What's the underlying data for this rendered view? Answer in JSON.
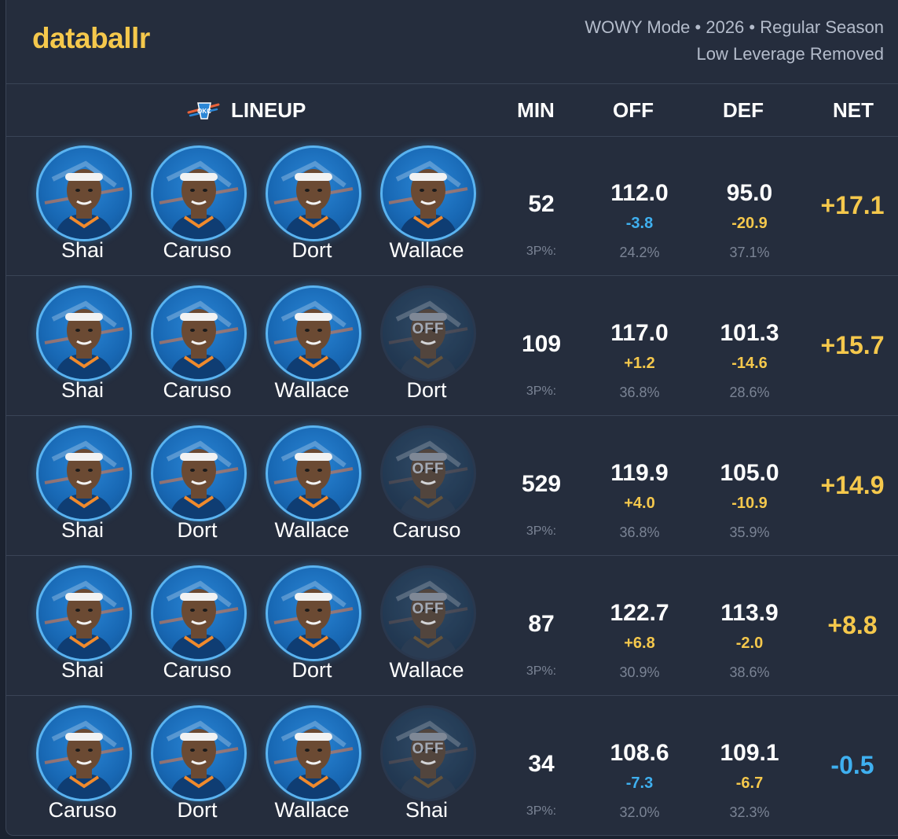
{
  "brand": "databallr",
  "meta_line1": "WOWY Mode • 2026 • Regular Season",
  "meta_line2": "Low Leverage Removed",
  "headers": {
    "lineup": "LINEUP",
    "min": "MIN",
    "off": "OFF",
    "def": "DEF",
    "net": "NET"
  },
  "colors": {
    "positive": "#f5c84c",
    "negative": "#3fb0f0",
    "accent": "#f5c84c"
  },
  "off_badge": "OFF",
  "three_label": "3P%:",
  "rows": [
    {
      "players": [
        {
          "name": "Shai",
          "off": false
        },
        {
          "name": "Caruso",
          "off": false
        },
        {
          "name": "Dort",
          "off": false
        },
        {
          "name": "Wallace",
          "off": false
        }
      ],
      "min": "52",
      "off": "112.0",
      "off_diff": "-3.8",
      "off_diff_sign": "neg",
      "off_3p": "24.2%",
      "def": "95.0",
      "def_diff": "-20.9",
      "def_diff_sign": "pos",
      "def_3p": "37.1%",
      "net": "+17.1",
      "net_sign": "pos"
    },
    {
      "players": [
        {
          "name": "Shai",
          "off": false
        },
        {
          "name": "Caruso",
          "off": false
        },
        {
          "name": "Wallace",
          "off": false
        },
        {
          "name": "Dort",
          "off": true
        }
      ],
      "min": "109",
      "off": "117.0",
      "off_diff": "+1.2",
      "off_diff_sign": "pos",
      "off_3p": "36.8%",
      "def": "101.3",
      "def_diff": "-14.6",
      "def_diff_sign": "pos",
      "def_3p": "28.6%",
      "net": "+15.7",
      "net_sign": "pos"
    },
    {
      "players": [
        {
          "name": "Shai",
          "off": false
        },
        {
          "name": "Dort",
          "off": false
        },
        {
          "name": "Wallace",
          "off": false
        },
        {
          "name": "Caruso",
          "off": true
        }
      ],
      "min": "529",
      "off": "119.9",
      "off_diff": "+4.0",
      "off_diff_sign": "pos",
      "off_3p": "36.8%",
      "def": "105.0",
      "def_diff": "-10.9",
      "def_diff_sign": "pos",
      "def_3p": "35.9%",
      "net": "+14.9",
      "net_sign": "pos"
    },
    {
      "players": [
        {
          "name": "Shai",
          "off": false
        },
        {
          "name": "Caruso",
          "off": false
        },
        {
          "name": "Dort",
          "off": false
        },
        {
          "name": "Wallace",
          "off": true
        }
      ],
      "min": "87",
      "off": "122.7",
      "off_diff": "+6.8",
      "off_diff_sign": "pos",
      "off_3p": "30.9%",
      "def": "113.9",
      "def_diff": "-2.0",
      "def_diff_sign": "pos",
      "def_3p": "38.6%",
      "net": "+8.8",
      "net_sign": "pos"
    },
    {
      "players": [
        {
          "name": "Caruso",
          "off": false
        },
        {
          "name": "Dort",
          "off": false
        },
        {
          "name": "Wallace",
          "off": false
        },
        {
          "name": "Shai",
          "off": true
        }
      ],
      "min": "34",
      "off": "108.6",
      "off_diff": "-7.3",
      "off_diff_sign": "neg",
      "off_3p": "32.0%",
      "def": "109.1",
      "def_diff": "-6.7",
      "def_diff_sign": "pos",
      "def_3p": "32.3%",
      "net": "-0.5",
      "net_sign": "neg"
    }
  ]
}
